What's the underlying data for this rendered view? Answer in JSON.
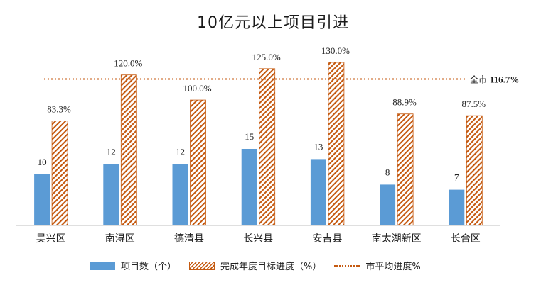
{
  "chart_data": {
    "type": "bar",
    "title": "10亿元以上项目引进",
    "categories": [
      "吴兴区",
      "南浔区",
      "德清县",
      "长兴县",
      "安吉县",
      "南太湖新区",
      "长合区"
    ],
    "series": [
      {
        "name": "项目数（个）",
        "values": [
          10,
          12,
          12,
          15,
          13,
          8,
          7
        ],
        "labels": [
          "10",
          "12",
          "12",
          "15",
          "13",
          "8",
          "7"
        ],
        "color": "#5b9bd5"
      },
      {
        "name": "完成年度目标进度（%）",
        "values": [
          83.3,
          120.0,
          100.0,
          125.0,
          130.0,
          88.9,
          87.5
        ],
        "labels": [
          "83.3%",
          "120.0%",
          "100.0%",
          "125.0%",
          "130.0%",
          "88.9%",
          "87.5%"
        ],
        "color": "#c55a11",
        "pattern": "hatched"
      }
    ],
    "reference_line": {
      "name": "市平均进度%",
      "value": 116.7,
      "label_prefix": "全市",
      "label_value": "116.7%",
      "color": "#c55a11",
      "style": "dotted"
    },
    "grid": false,
    "legend": "bottom"
  }
}
